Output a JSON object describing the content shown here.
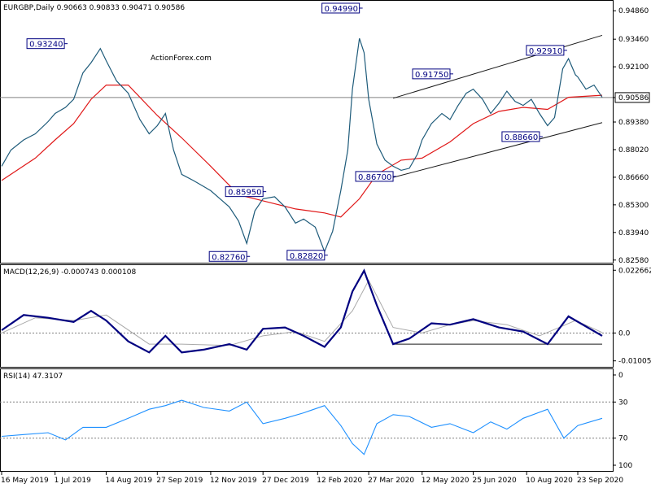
{
  "chart_data": {
    "type": "line",
    "symbol": "EURGBP",
    "timeframe": "Daily",
    "watermark": "ActionForex.com",
    "header": "EURGBP,Daily  0.90663 0.90833 0.90471 0.90586",
    "last_price": "0.90586",
    "price_pane": {
      "y_ticks": [
        "0.94860",
        "0.93460",
        "0.92100",
        "0.90586",
        "0.89380",
        "0.88020",
        "0.86660",
        "0.85300",
        "0.83940",
        "0.82580"
      ],
      "ylim": [
        0.8245,
        0.9535
      ],
      "x_dates": [
        "16 May 2019",
        "1 Jul 2019",
        "14 Aug 2019",
        "27 Sep 2019",
        "12 Nov 2019",
        "27 Dec 2019",
        "12 Feb 2020",
        "27 Mar 2020",
        "12 May 2020",
        "25 Jun 2020",
        "10 Aug 2020",
        "23 Sep 2020"
      ],
      "close_path": [
        [
          "2019-05-16",
          0.872
        ],
        [
          "2019-05-24",
          0.88
        ],
        [
          "2019-06-04",
          0.885
        ],
        [
          "2019-06-14",
          0.888
        ],
        [
          "2019-06-25",
          0.894
        ],
        [
          "2019-07-01",
          0.898
        ],
        [
          "2019-07-10",
          0.901
        ],
        [
          "2019-07-17",
          0.905
        ],
        [
          "2019-07-25",
          0.918
        ],
        [
          "2019-08-01",
          0.923
        ],
        [
          "2019-08-09",
          0.93
        ],
        [
          "2019-08-14",
          0.924
        ],
        [
          "2019-08-23",
          0.914
        ],
        [
          "2019-09-02",
          0.908
        ],
        [
          "2019-09-12",
          0.895
        ],
        [
          "2019-09-20",
          0.888
        ],
        [
          "2019-09-27",
          0.892
        ],
        [
          "2019-10-04",
          0.898
        ],
        [
          "2019-10-11",
          0.88
        ],
        [
          "2019-10-18",
          0.868
        ],
        [
          "2019-10-28",
          0.865
        ],
        [
          "2019-11-06",
          0.862
        ],
        [
          "2019-11-12",
          0.86
        ],
        [
          "2019-11-20",
          0.856
        ],
        [
          "2019-11-28",
          0.852
        ],
        [
          "2019-12-06",
          0.845
        ],
        [
          "2019-12-13",
          0.834
        ],
        [
          "2019-12-20",
          0.85
        ],
        [
          "2019-12-27",
          0.856
        ],
        [
          "2020-01-06",
          0.857
        ],
        [
          "2020-01-15",
          0.852
        ],
        [
          "2020-01-24",
          0.844
        ],
        [
          "2020-01-31",
          0.846
        ],
        [
          "2020-02-10",
          0.842
        ],
        [
          "2020-02-18",
          0.83
        ],
        [
          "2020-02-25",
          0.84
        ],
        [
          "2020-03-03",
          0.86
        ],
        [
          "2020-03-09",
          0.88
        ],
        [
          "2020-03-13",
          0.91
        ],
        [
          "2020-03-19",
          0.935
        ],
        [
          "2020-03-23",
          0.928
        ],
        [
          "2020-03-27",
          0.905
        ],
        [
          "2020-04-03",
          0.883
        ],
        [
          "2020-04-10",
          0.875
        ],
        [
          "2020-04-17",
          0.872
        ],
        [
          "2020-04-24",
          0.87
        ],
        [
          "2020-05-01",
          0.871
        ],
        [
          "2020-05-08",
          0.878
        ],
        [
          "2020-05-12",
          0.885
        ],
        [
          "2020-05-20",
          0.893
        ],
        [
          "2020-05-29",
          0.898
        ],
        [
          "2020-06-05",
          0.895
        ],
        [
          "2020-06-12",
          0.902
        ],
        [
          "2020-06-19",
          0.908
        ],
        [
          "2020-06-25",
          0.91
        ],
        [
          "2020-07-03",
          0.905
        ],
        [
          "2020-07-10",
          0.898
        ],
        [
          "2020-07-17",
          0.903
        ],
        [
          "2020-07-24",
          0.909
        ],
        [
          "2020-07-31",
          0.904
        ],
        [
          "2020-08-07",
          0.902
        ],
        [
          "2020-08-14",
          0.905
        ],
        [
          "2020-08-21",
          0.898
        ],
        [
          "2020-08-28",
          0.892
        ],
        [
          "2020-09-03",
          0.896
        ],
        [
          "2020-09-10",
          0.92
        ],
        [
          "2020-09-15",
          0.925
        ],
        [
          "2020-09-21",
          0.917
        ],
        [
          "2020-09-23",
          0.916
        ],
        [
          "2020-09-30",
          0.91
        ],
        [
          "2020-10-07",
          0.912
        ],
        [
          "2020-10-14",
          0.906
        ]
      ],
      "ma_path": [
        [
          "2019-05-16",
          0.865
        ],
        [
          "2019-06-14",
          0.876
        ],
        [
          "2019-07-01",
          0.885
        ],
        [
          "2019-07-17",
          0.893
        ],
        [
          "2019-08-01",
          0.905
        ],
        [
          "2019-08-14",
          0.912
        ],
        [
          "2019-09-02",
          0.912
        ],
        [
          "2019-09-27",
          0.897
        ],
        [
          "2019-10-18",
          0.886
        ],
        [
          "2019-11-12",
          0.872
        ],
        [
          "2019-12-06",
          0.858
        ],
        [
          "2019-12-27",
          0.855
        ],
        [
          "2020-01-24",
          0.851
        ],
        [
          "2020-02-18",
          0.849
        ],
        [
          "2020-03-03",
          0.847
        ],
        [
          "2020-03-19",
          0.856
        ],
        [
          "2020-04-03",
          0.868
        ],
        [
          "2020-04-24",
          0.875
        ],
        [
          "2020-05-12",
          0.876
        ],
        [
          "2020-06-05",
          0.884
        ],
        [
          "2020-06-25",
          0.893
        ],
        [
          "2020-07-17",
          0.899
        ],
        [
          "2020-08-07",
          0.901
        ],
        [
          "2020-08-28",
          0.9
        ],
        [
          "2020-09-15",
          0.906
        ],
        [
          "2020-10-14",
          0.907
        ]
      ],
      "channel_upper": [
        [
          "2020-04-17",
          0.9055
        ],
        [
          "2020-10-14",
          0.9365
        ]
      ],
      "channel_lower": [
        [
          "2020-04-17",
          0.8665
        ],
        [
          "2020-10-14",
          0.8935
        ]
      ],
      "hline": 0.90586,
      "annotations": [
        {
          "label": "0.93240",
          "date": "2019-07-09",
          "value": 0.9324
        },
        {
          "label": "0.94990",
          "date": "2020-03-19",
          "value": 0.9499
        },
        {
          "label": "0.91750",
          "date": "2020-06-05",
          "value": 0.9175
        },
        {
          "label": "0.92910",
          "date": "2020-09-11",
          "value": 0.9291
        },
        {
          "label": "0.85950",
          "date": "2019-12-27",
          "value": 0.8595
        },
        {
          "label": "0.86700",
          "date": "2020-04-17",
          "value": 0.867
        },
        {
          "label": "0.88660",
          "date": "2020-08-21",
          "value": 0.8866
        },
        {
          "label": "0.82760",
          "date": "2019-12-13",
          "value": 0.8276
        },
        {
          "label": "0.82820",
          "date": "2020-02-18",
          "value": 0.8282
        }
      ]
    },
    "macd_pane": {
      "label": "MACD(12,26,9) -0.000743 0.000108",
      "y_ticks": [
        "0.022662",
        "0.0",
        "-0.010052"
      ],
      "ylim": [
        -0.0122,
        0.0245
      ],
      "macd_path": [
        [
          "2019-05-16",
          0.001
        ],
        [
          "2019-06-04",
          0.0065
        ],
        [
          "2019-06-25",
          0.0055
        ],
        [
          "2019-07-17",
          0.004
        ],
        [
          "2019-08-01",
          0.008
        ],
        [
          "2019-08-14",
          0.0045
        ],
        [
          "2019-09-02",
          -0.003
        ],
        [
          "2019-09-20",
          -0.007
        ],
        [
          "2019-10-04",
          -0.001
        ],
        [
          "2019-10-18",
          -0.007
        ],
        [
          "2019-11-06",
          -0.006
        ],
        [
          "2019-11-28",
          -0.004
        ],
        [
          "2019-12-13",
          -0.006
        ],
        [
          "2019-12-27",
          0.0015
        ],
        [
          "2020-01-15",
          0.002
        ],
        [
          "2020-01-31",
          -0.001
        ],
        [
          "2020-02-18",
          -0.005
        ],
        [
          "2020-03-03",
          0.002
        ],
        [
          "2020-03-13",
          0.015
        ],
        [
          "2020-03-23",
          0.0225
        ],
        [
          "2020-04-03",
          0.01
        ],
        [
          "2020-04-17",
          -0.004
        ],
        [
          "2020-05-01",
          -0.002
        ],
        [
          "2020-05-20",
          0.0035
        ],
        [
          "2020-06-05",
          0.003
        ],
        [
          "2020-06-25",
          0.005
        ],
        [
          "2020-07-17",
          0.002
        ],
        [
          "2020-08-07",
          0.0005
        ],
        [
          "2020-08-28",
          -0.004
        ],
        [
          "2020-09-15",
          0.006
        ],
        [
          "2020-10-14",
          -0.001
        ]
      ],
      "signal_path": [
        [
          "2019-05-16",
          0.0
        ],
        [
          "2019-06-14",
          0.0055
        ],
        [
          "2019-07-17",
          0.0045
        ],
        [
          "2019-08-14",
          0.0065
        ],
        [
          "2019-09-20",
          -0.004
        ],
        [
          "2019-10-18",
          -0.004
        ],
        [
          "2019-11-28",
          -0.0045
        ],
        [
          "2019-12-27",
          -0.001
        ],
        [
          "2020-01-24",
          0.0005
        ],
        [
          "2020-02-18",
          -0.003
        ],
        [
          "2020-03-13",
          0.008
        ],
        [
          "2020-03-27",
          0.019
        ],
        [
          "2020-04-17",
          0.002
        ],
        [
          "2020-05-12",
          0.0
        ],
        [
          "2020-06-05",
          0.003
        ],
        [
          "2020-06-25",
          0.0045
        ],
        [
          "2020-07-24",
          0.003
        ],
        [
          "2020-08-21",
          -0.001
        ],
        [
          "2020-09-21",
          0.0045
        ],
        [
          "2020-10-14",
          0.0002
        ]
      ],
      "support_line": [
        [
          "2020-04-17",
          -0.004
        ],
        [
          "2020-10-14",
          -0.004
        ]
      ],
      "zero": 0
    },
    "rsi_pane": {
      "label": "RSI(14) 47.3107",
      "y_ticks": [
        "100",
        "70",
        "30",
        "0"
      ],
      "ylim": [
        0,
        100
      ],
      "levels": [
        70,
        30
      ],
      "rsi_path": [
        [
          "2019-05-16",
          68
        ],
        [
          "2019-06-04",
          66
        ],
        [
          "2019-06-25",
          64
        ],
        [
          "2019-07-10",
          72
        ],
        [
          "2019-07-25",
          58
        ],
        [
          "2019-08-14",
          58
        ],
        [
          "2019-09-02",
          48
        ],
        [
          "2019-09-20",
          38
        ],
        [
          "2019-10-04",
          34
        ],
        [
          "2019-10-18",
          28
        ],
        [
          "2019-11-06",
          36
        ],
        [
          "2019-11-28",
          40
        ],
        [
          "2019-12-13",
          30
        ],
        [
          "2019-12-27",
          54
        ],
        [
          "2020-01-15",
          48
        ],
        [
          "2020-01-31",
          42
        ],
        [
          "2020-02-18",
          34
        ],
        [
          "2020-03-03",
          56
        ],
        [
          "2020-03-13",
          76
        ],
        [
          "2020-03-23",
          88
        ],
        [
          "2020-04-03",
          54
        ],
        [
          "2020-04-17",
          44
        ],
        [
          "2020-05-01",
          46
        ],
        [
          "2020-05-20",
          58
        ],
        [
          "2020-06-05",
          54
        ],
        [
          "2020-06-25",
          64
        ],
        [
          "2020-07-10",
          52
        ],
        [
          "2020-07-24",
          60
        ],
        [
          "2020-08-07",
          48
        ],
        [
          "2020-08-28",
          38
        ],
        [
          "2020-09-11",
          70
        ],
        [
          "2020-09-23",
          56
        ],
        [
          "2020-10-14",
          48
        ]
      ]
    },
    "colors": {
      "price": "#1e5b7a",
      "ma": "#e01818",
      "channel": "#1a1a1a",
      "macd": "#000080",
      "signal": "#a9a9a9",
      "rsi": "#1e90ff",
      "grid": "#808080"
    }
  }
}
